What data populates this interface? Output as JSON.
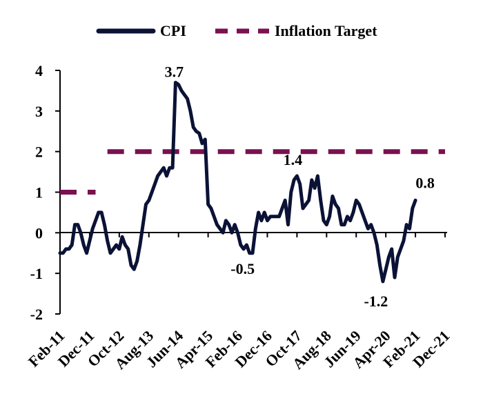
{
  "chart_data": {
    "type": "line",
    "title": "",
    "xlabel": "",
    "ylabel": "",
    "ylim": [
      -2,
      4
    ],
    "yticks": [
      "4",
      "3",
      "2",
      "1",
      "0",
      "-1",
      "-2"
    ],
    "grid": false,
    "legend_position": "top",
    "x_tick_labels": [
      "Feb-11",
      "Dec-11",
      "Oct-12",
      "Aug-13",
      "Jun-14",
      "Apr-15",
      "Feb-16",
      "Dec-16",
      "Oct-17",
      "Aug-18",
      "Jun-19",
      "Apr-20",
      "Feb-21",
      "Dec-21"
    ],
    "x_tick_months": [
      0,
      10,
      20,
      30,
      40,
      50,
      60,
      70,
      80,
      90,
      100,
      110,
      120,
      130
    ],
    "x_range_months": [
      0,
      130
    ],
    "x_start": "Feb-11",
    "series": [
      {
        "name": "CPI",
        "color": "#0b1236",
        "style": "solid",
        "points": [
          [
            0,
            -0.5
          ],
          [
            1,
            -0.5
          ],
          [
            2,
            -0.4
          ],
          [
            3,
            -0.4
          ],
          [
            4,
            -0.3
          ],
          [
            5,
            0.2
          ],
          [
            6,
            0.2
          ],
          [
            7,
            0.0
          ],
          [
            8,
            -0.3
          ],
          [
            9,
            -0.5
          ],
          [
            10,
            -0.2
          ],
          [
            11,
            0.1
          ],
          [
            12,
            0.3
          ],
          [
            13,
            0.5
          ],
          [
            14,
            0.5
          ],
          [
            15,
            0.2
          ],
          [
            16,
            -0.2
          ],
          [
            17,
            -0.5
          ],
          [
            18,
            -0.4
          ],
          [
            19,
            -0.3
          ],
          [
            20,
            -0.4
          ],
          [
            21,
            -0.1
          ],
          [
            22,
            -0.3
          ],
          [
            23,
            -0.4
          ],
          [
            24,
            -0.8
          ],
          [
            25,
            -0.9
          ],
          [
            26,
            -0.7
          ],
          [
            27,
            -0.3
          ],
          [
            28,
            0.2
          ],
          [
            29,
            0.7
          ],
          [
            30,
            0.8
          ],
          [
            31,
            1.0
          ],
          [
            32,
            1.2
          ],
          [
            33,
            1.4
          ],
          [
            34,
            1.5
          ],
          [
            35,
            1.6
          ],
          [
            36,
            1.4
          ],
          [
            37,
            1.6
          ],
          [
            38,
            1.6
          ],
          [
            39,
            3.7
          ],
          [
            40,
            3.65
          ],
          [
            41,
            3.5
          ],
          [
            42,
            3.4
          ],
          [
            43,
            3.3
          ],
          [
            44,
            3.0
          ],
          [
            45,
            2.6
          ],
          [
            46,
            2.5
          ],
          [
            47,
            2.45
          ],
          [
            48,
            2.2
          ],
          [
            49,
            2.3
          ],
          [
            50,
            0.7
          ],
          [
            51,
            0.6
          ],
          [
            52,
            0.4
          ],
          [
            53,
            0.2
          ],
          [
            54,
            0.1
          ],
          [
            55,
            0.0
          ],
          [
            56,
            0.3
          ],
          [
            57,
            0.2
          ],
          [
            58,
            0.0
          ],
          [
            59,
            0.2
          ],
          [
            60,
            0.0
          ],
          [
            61,
            -0.3
          ],
          [
            62,
            -0.4
          ],
          [
            63,
            -0.3
          ],
          [
            64,
            -0.5
          ],
          [
            65,
            -0.5
          ],
          [
            66,
            0.1
          ],
          [
            67,
            0.5
          ],
          [
            68,
            0.3
          ],
          [
            69,
            0.5
          ],
          [
            70,
            0.3
          ],
          [
            71,
            0.4
          ],
          [
            72,
            0.4
          ],
          [
            73,
            0.4
          ],
          [
            74,
            0.4
          ],
          [
            75,
            0.6
          ],
          [
            76,
            0.8
          ],
          [
            77,
            0.2
          ],
          [
            78,
            1.0
          ],
          [
            79,
            1.3
          ],
          [
            80,
            1.4
          ],
          [
            81,
            1.2
          ],
          [
            82,
            0.6
          ],
          [
            83,
            0.7
          ],
          [
            84,
            0.8
          ],
          [
            85,
            1.3
          ],
          [
            86,
            1.1
          ],
          [
            87,
            1.4
          ],
          [
            88,
            0.8
          ],
          [
            89,
            0.3
          ],
          [
            90,
            0.2
          ],
          [
            91,
            0.4
          ],
          [
            92,
            0.9
          ],
          [
            93,
            0.7
          ],
          [
            94,
            0.6
          ],
          [
            95,
            0.2
          ],
          [
            96,
            0.2
          ],
          [
            97,
            0.4
          ],
          [
            98,
            0.3
          ],
          [
            99,
            0.5
          ],
          [
            100,
            0.8
          ],
          [
            101,
            0.7
          ],
          [
            102,
            0.5
          ],
          [
            103,
            0.3
          ],
          [
            104,
            0.1
          ],
          [
            105,
            0.2
          ],
          [
            106,
            0.0
          ],
          [
            107,
            -0.3
          ],
          [
            108,
            -0.8
          ],
          [
            109,
            -1.2
          ],
          [
            110,
            -0.9
          ],
          [
            111,
            -0.6
          ],
          [
            112,
            -0.4
          ],
          [
            113,
            -1.1
          ],
          [
            114,
            -0.6
          ],
          [
            115,
            -0.4
          ],
          [
            116,
            -0.2
          ],
          [
            117,
            0.2
          ],
          [
            118,
            0.1
          ],
          [
            119,
            0.6
          ],
          [
            120,
            0.8
          ]
        ]
      },
      {
        "name": "Inflation Target",
        "color": "#7a1150",
        "style": "dashed",
        "points": [
          [
            0,
            1
          ],
          [
            12,
            1
          ],
          [
            null,
            null
          ],
          [
            16,
            2
          ],
          [
            130,
            2
          ]
        ]
      }
    ],
    "annotations": [
      {
        "text": "3.7",
        "x": 39,
        "y": 3.7
      },
      {
        "text": "1.4",
        "x": 80,
        "y": 1.4
      },
      {
        "text": "-0.5",
        "x": 64,
        "y": -0.5
      },
      {
        "text": "-1.2",
        "x": 109,
        "y": -1.2
      },
      {
        "text": "0.8",
        "x": 120,
        "y": 0.8
      }
    ]
  }
}
